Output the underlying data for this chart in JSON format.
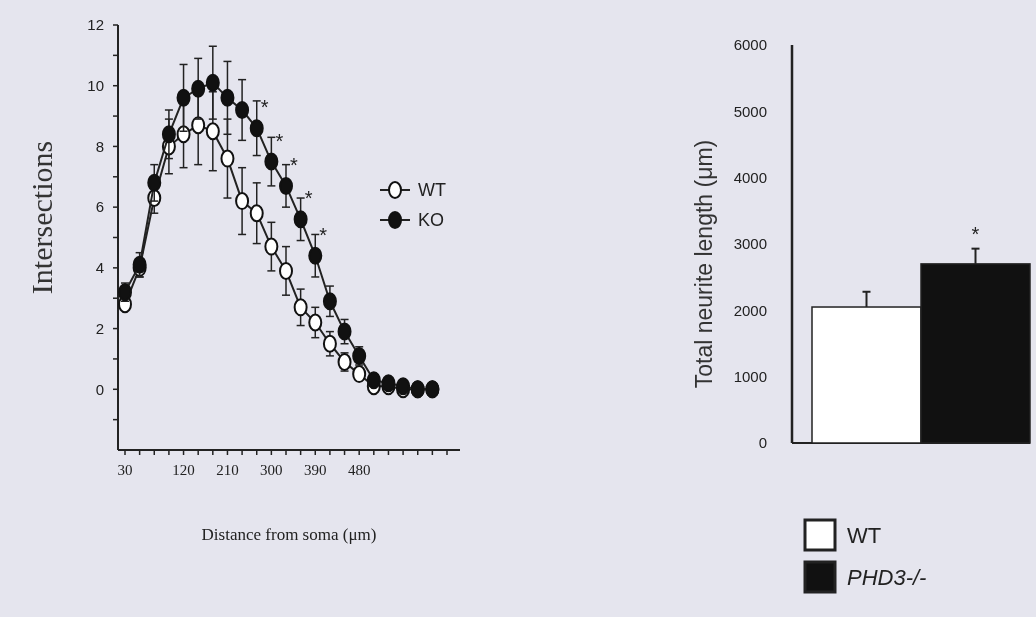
{
  "chart_data": [
    {
      "type": "line",
      "xlabel": "Distance from soma (μm)",
      "ylabel": "Intersections",
      "categories": [
        "30",
        null,
        null,
        null,
        "120",
        null,
        null,
        "210",
        null,
        null,
        "300",
        null,
        null,
        "390",
        null,
        null,
        "480",
        null,
        null,
        null,
        null,
        null,
        null
      ],
      "series": [
        {
          "name": "WT",
          "color": "#ffffff",
          "values": [
            2.8,
            4.0,
            6.3,
            8.0,
            8.4,
            8.7,
            8.5,
            7.6,
            6.2,
            5.8,
            4.7,
            3.9,
            2.7,
            2.2,
            1.5,
            0.9,
            0.5,
            0.1,
            0.1,
            0,
            0,
            0,
            null
          ],
          "errors": [
            0.2,
            0.3,
            0.5,
            0.9,
            1.1,
            1.3,
            1.3,
            1.3,
            1.1,
            1.0,
            0.8,
            0.8,
            0.6,
            0.5,
            0.4,
            0.3,
            0.2,
            null,
            null,
            null,
            null,
            null,
            null
          ]
        },
        {
          "name": "KO",
          "color": "#111111",
          "values": [
            3.2,
            4.1,
            6.8,
            8.4,
            9.6,
            9.9,
            10.1,
            9.6,
            9.2,
            8.6,
            7.5,
            6.7,
            5.6,
            4.4,
            2.9,
            1.9,
            1.1,
            0.3,
            0.2,
            0.1,
            0,
            0,
            null
          ],
          "errors": [
            0.3,
            0.4,
            0.6,
            0.8,
            1.1,
            1.0,
            1.2,
            1.2,
            1.0,
            0.9,
            0.8,
            0.7,
            0.7,
            0.7,
            0.5,
            0.4,
            0.3,
            0.2,
            0.1,
            null,
            null,
            null,
            null
          ]
        }
      ],
      "ylim": [
        -2,
        12
      ],
      "yticks": [
        {
          "value": -1,
          "label": null
        },
        0,
        {
          "value": 1,
          "label": null
        },
        2,
        {
          "value": 3,
          "label": null
        },
        4,
        {
          "value": 5,
          "label": null
        },
        6,
        {
          "value": 7,
          "label": null
        },
        8,
        {
          "value": 9,
          "label": null
        },
        10,
        {
          "value": 11,
          "label": null
        },
        12
      ],
      "marker": "circle",
      "legend": "right",
      "grid": false,
      "annotations": [
        "*",
        "*",
        "*",
        "*",
        "*"
      ]
    },
    {
      "type": "bar",
      "ylabel": "Total neurite length (μm)",
      "categories": [
        null,
        null
      ],
      "series": [
        {
          "name": "WT",
          "color": "#ffffff",
          "values": [
            2050,
            null
          ],
          "errors": [
            [
              2050,
              2280
            ],
            null
          ]
        },
        {
          "name": "PHD3-/-",
          "color": "#111111",
          "values": [
            null,
            2700
          ],
          "errors": [
            null,
            [
              2700,
              2930
            ]
          ]
        }
      ],
      "ylim": [
        0,
        6000
      ],
      "yticks": [
        0,
        1000,
        2000,
        3000,
        4000,
        5000,
        6000
      ],
      "legend": "bottom",
      "grid": false,
      "annotations": [
        "*"
      ]
    }
  ]
}
